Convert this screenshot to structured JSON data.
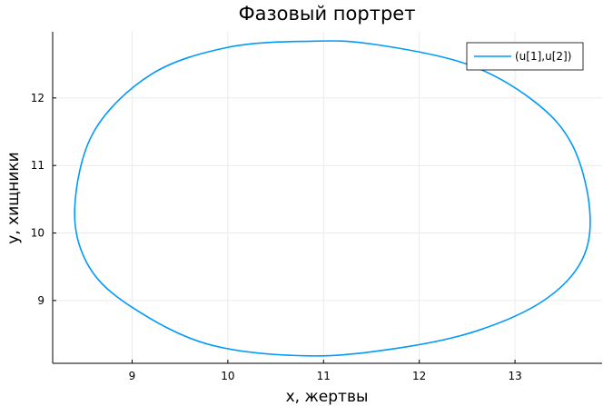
{
  "chart_data": {
    "type": "line",
    "title": "Фазовый портрет",
    "xlabel": "x, жертвы",
    "ylabel": "y, хищники",
    "xlim": [
      8.17,
      13.91
    ],
    "ylim": [
      8.07,
      12.98
    ],
    "xticks": [
      9,
      10,
      11,
      12,
      13
    ],
    "yticks": [
      9,
      10,
      11,
      12
    ],
    "grid": true,
    "legend_position": "top-right",
    "colors": {
      "series": "#009af9",
      "grid": "#ebebeb",
      "axis": "#000000"
    },
    "series": [
      {
        "name": "(u[1],u[2])",
        "curve": "closed-orbit",
        "x": [
          13.78,
          13.6,
          13.2,
          12.5,
          11.5,
          10.85,
          10.0,
          9.2,
          8.6,
          8.4,
          8.55,
          9.0,
          9.8,
          10.85,
          11.8,
          12.6,
          13.3,
          13.7,
          13.78
        ],
        "y": [
          10.35,
          11.3,
          11.95,
          12.5,
          12.8,
          12.84,
          12.75,
          12.35,
          11.5,
          10.35,
          9.5,
          8.9,
          8.35,
          8.18,
          8.3,
          8.55,
          9.0,
          9.6,
          10.35
        ]
      }
    ]
  }
}
